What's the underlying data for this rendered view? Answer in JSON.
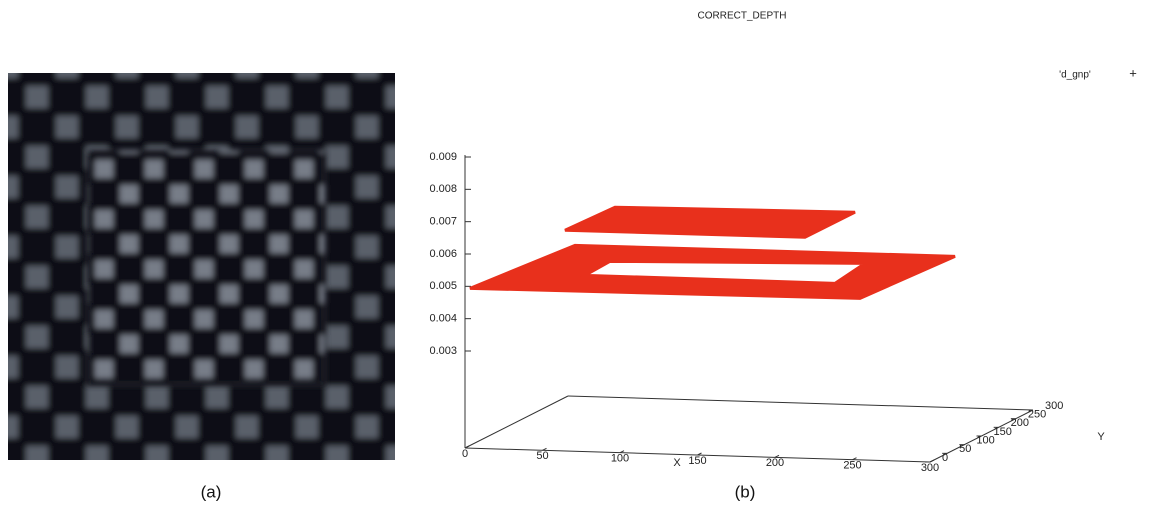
{
  "figure": {
    "captions": [
      "(a)",
      "(b)"
    ]
  },
  "chart_data": {
    "type": "surface3d",
    "title": "CORRECT_DEPTH",
    "series": [
      {
        "name": "'d_gnp'",
        "color": "#e8301c",
        "values": [
          0.0072,
          0.005
        ]
      }
    ],
    "xlabel": "X",
    "ylabel": "Y",
    "xlim": [
      0,
      300
    ],
    "ylim": [
      0,
      300
    ],
    "zlim": [
      0,
      0.009
    ],
    "xticks": [
      0,
      50,
      100,
      150,
      200,
      250,
      300
    ],
    "yticks": [
      0,
      50,
      100,
      150,
      200,
      250,
      300
    ],
    "zticks": [
      0.003,
      0.004,
      0.005,
      0.006,
      0.007,
      0.008,
      0.009
    ]
  }
}
